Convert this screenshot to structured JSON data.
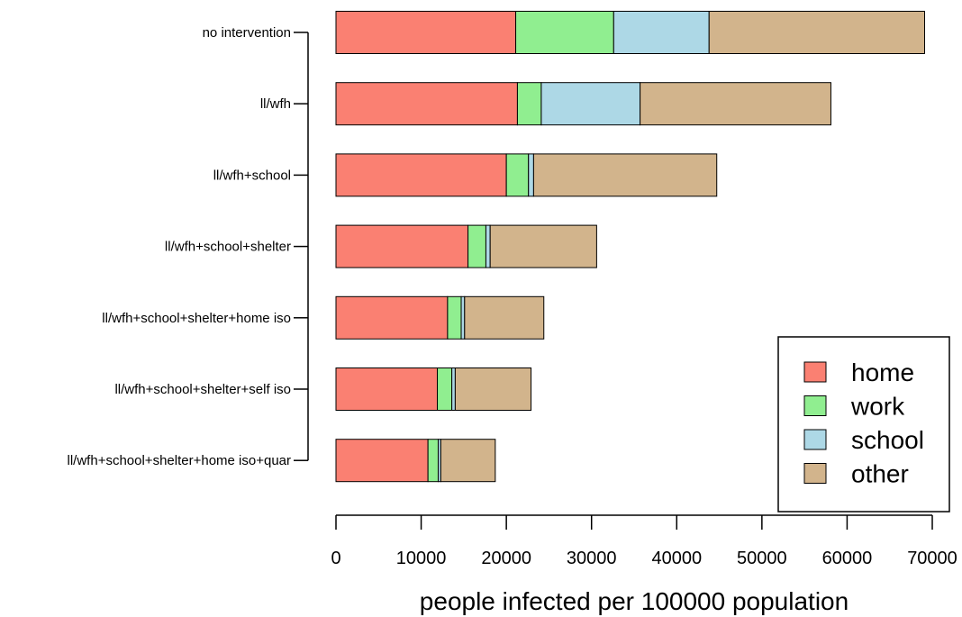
{
  "chart_data": {
    "type": "bar",
    "orientation": "horizontal",
    "stacked": true,
    "categories": [
      "no intervention",
      "ll/wfh",
      "ll/wfh+school",
      "ll/wfh+school+shelter",
      "ll/wfh+school+shelter+home iso",
      "ll/wfh+school+shelter+self iso",
      "ll/wfh+school+shelter+home iso+quar"
    ],
    "series": [
      {
        "name": "home",
        "color": "#FA8072",
        "values": [
          21100,
          21300,
          20000,
          15500,
          13100,
          11900,
          10800
        ]
      },
      {
        "name": "work",
        "color": "#90EE90",
        "values": [
          11500,
          2800,
          2600,
          2100,
          1600,
          1700,
          1200
        ]
      },
      {
        "name": "school",
        "color": "#ADD8E6",
        "values": [
          11200,
          11600,
          600,
          500,
          400,
          400,
          300
        ]
      },
      {
        "name": "other",
        "color": "#D2B48C",
        "values": [
          25300,
          22400,
          21500,
          12500,
          9300,
          8900,
          6400
        ]
      }
    ],
    "xlabel": "people infected per 100000 population",
    "xlim": [
      0,
      70000
    ],
    "xticks": [
      0,
      10000,
      20000,
      30000,
      40000,
      50000,
      60000,
      70000
    ],
    "xtick_labels": [
      "0",
      "10000",
      "20000",
      "30000",
      "40000",
      "50000",
      "60000",
      "70000"
    ],
    "grid": false,
    "legend_position": "bottom-right"
  }
}
